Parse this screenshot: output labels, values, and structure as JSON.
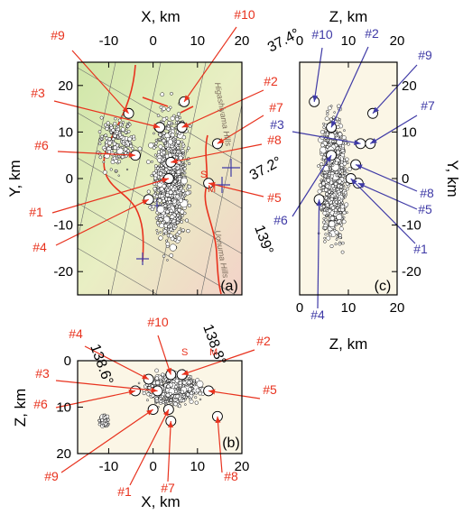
{
  "colors": {
    "red": "#e8321e",
    "purple": "#3f3aa6",
    "map_bg_green": "#cfe6a8",
    "map_bg_pink": "#f3d2c8",
    "section_bg": "#fbf6e6"
  },
  "chart_data": [
    {
      "panel": "(a)",
      "type": "scatter",
      "subtype": "map view of earthquake hypocenters",
      "xlabel": "X, km",
      "ylabel": "Y, km",
      "xlim": [
        -17,
        20
      ],
      "ylim": [
        -25,
        25
      ],
      "xticks": [
        -10,
        0,
        10,
        20
      ],
      "yticks": [
        -20,
        -10,
        0,
        10,
        20
      ],
      "lat_labels": [
        "37.4°",
        "37.2°"
      ],
      "lon_labels": [
        "138.6°",
        "138.8°",
        "139°"
      ],
      "annotations": [
        "Higashiyama Hills",
        "Uonuma Hills",
        "S",
        "M"
      ],
      "mainshocks": [
        {
          "label": "#1",
          "x": 3.5,
          "y": 0.0
        },
        {
          "label": "#2",
          "x": 6.5,
          "y": 11.0
        },
        {
          "label": "#3",
          "x": 1.5,
          "y": 11.0
        },
        {
          "label": "#4",
          "x": -1.0,
          "y": -4.5
        },
        {
          "label": "#5",
          "x": 12.5,
          "y": -1.0
        },
        {
          "label": "#6",
          "x": -4.0,
          "y": 5.0
        },
        {
          "label": "#7",
          "x": 14.5,
          "y": 7.5
        },
        {
          "label": "#8",
          "x": 4.0,
          "y": 3.5
        },
        {
          "label": "#9",
          "x": -5.5,
          "y": 14.0
        },
        {
          "label": "#10",
          "x": 7.0,
          "y": 16.5
        }
      ]
    },
    {
      "panel": "(c)",
      "type": "scatter",
      "subtype": "cross-section Z vs Y",
      "xlabel": "Z, km",
      "ylabel": "Y, km",
      "xlim": [
        0,
        20
      ],
      "ylim": [
        -25,
        25
      ],
      "xticks": [
        0,
        10,
        20
      ],
      "yticks": [
        -20,
        -10,
        0,
        10,
        20
      ],
      "mainshocks": [
        {
          "label": "#1",
          "z": 10.5,
          "y": 0.0
        },
        {
          "label": "#2",
          "z": 6.5,
          "y": 11.0
        },
        {
          "label": "#3",
          "z": 12.5,
          "y": 7.5
        },
        {
          "label": "#4",
          "z": 4.0,
          "y": -4.5
        },
        {
          "label": "#5",
          "z": 12.0,
          "y": -1.0
        },
        {
          "label": "#6",
          "z": 6.5,
          "y": 5.0
        },
        {
          "label": "#7",
          "z": 14.5,
          "y": 7.5
        },
        {
          "label": "#8",
          "z": 11.5,
          "y": 3.0
        },
        {
          "label": "#9",
          "z": 15.0,
          "y": 14.0
        },
        {
          "label": "#10",
          "z": 3.0,
          "y": 16.5
        }
      ]
    },
    {
      "panel": "(b)",
      "type": "scatter",
      "subtype": "cross-section X vs Z",
      "xlabel": "X, km",
      "ylabel": "Z, km",
      "xlim": [
        -17,
        20
      ],
      "ylim": [
        20,
        0
      ],
      "xticks": [
        -10,
        0,
        10,
        20
      ],
      "yticks": [
        0,
        10,
        20
      ],
      "annotations": [
        "S",
        "M"
      ],
      "mainshocks": [
        {
          "label": "#1",
          "x": 3.5,
          "z": 10.5
        },
        {
          "label": "#2",
          "x": 6.5,
          "z": 3.0
        },
        {
          "label": "#3",
          "x": 1.0,
          "z": 6.5
        },
        {
          "label": "#4",
          "x": -1.0,
          "z": 4.0
        },
        {
          "label": "#5",
          "x": 12.5,
          "z": 6.5
        },
        {
          "label": "#6",
          "x": -4.0,
          "z": 6.5
        },
        {
          "label": "#7",
          "x": 4.0,
          "z": 13.0
        },
        {
          "label": "#8",
          "x": 14.5,
          "z": 12.0
        },
        {
          "label": "#9",
          "x": 0.0,
          "z": 10.5
        },
        {
          "label": "#10",
          "x": 4.0,
          "z": 3.0
        }
      ]
    }
  ]
}
